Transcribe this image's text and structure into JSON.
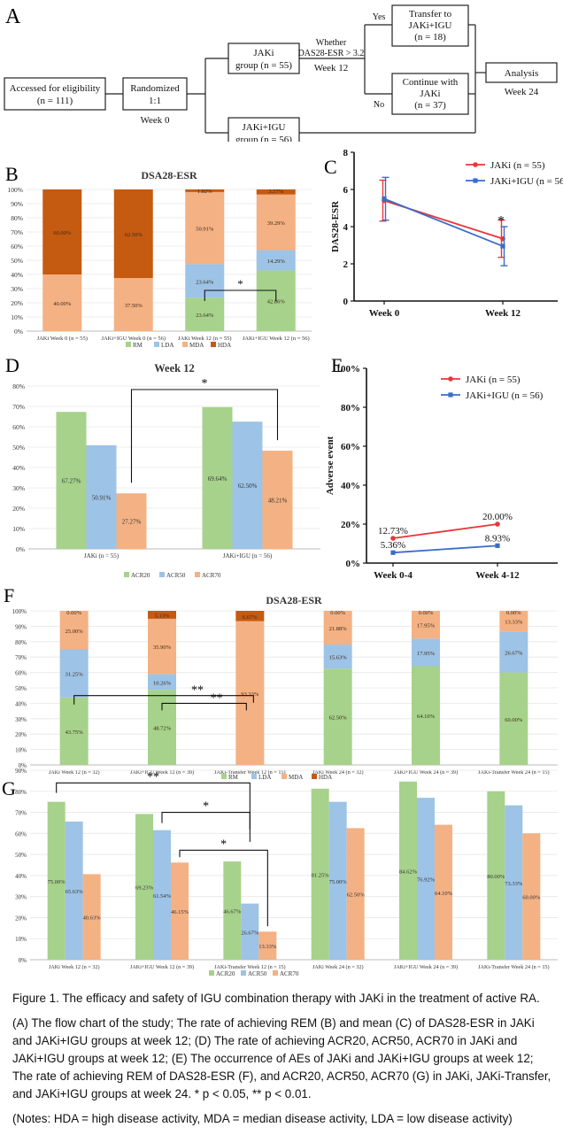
{
  "panelA": {
    "letter": "A",
    "boxes": {
      "accessed": [
        "Accessed for eligibility",
        "(n = 111)"
      ],
      "randomized": [
        "Randomized",
        "1:1"
      ],
      "week0": "Week 0",
      "jaki": [
        "JAKi",
        "group (n = 55)"
      ],
      "jakiigu": [
        "JAKi+IGU",
        "group (n = 56)"
      ],
      "whether": [
        "Whether",
        "DAS28-ESR > 3.2"
      ],
      "week12": "Week 12",
      "yes": "Yes",
      "no": "No",
      "transfer": [
        "Transfer to",
        "JAKi+IGU",
        "(n = 18)"
      ],
      "continue": [
        "Continue with",
        "JAKi",
        "(n = 37)"
      ],
      "analysis": "Analysis",
      "week24": "Week 24"
    }
  },
  "panelB": {
    "letter": "B",
    "chart_data": {
      "type": "bar",
      "stacked": true,
      "title": "DSA28-ESR",
      "categories": [
        "JAKi Week 0 (n = 55)",
        "JAKi+IGU Week 0 (n = 56)",
        "JAKi Week 12 (n = 55)",
        "JAKi+IGU Week 12 (n = 56)"
      ],
      "series": [
        {
          "name": "RM",
          "color": "#a6d28b",
          "values": [
            0.0,
            0.0,
            23.64,
            42.86
          ],
          "labels": [
            "0.00%",
            "0.00%",
            "23.64%",
            "42.86%"
          ]
        },
        {
          "name": "LDA",
          "color": "#9dc3e6",
          "values": [
            0.0,
            0.0,
            23.64,
            14.29
          ],
          "labels": [
            "",
            "",
            "23.64%",
            "14.29%"
          ]
        },
        {
          "name": "MDA",
          "color": "#f4b183",
          "values": [
            40.0,
            37.5,
            50.91,
            39.29
          ],
          "labels": [
            "40.00%",
            "37.50%",
            "50.91%",
            "39.29%"
          ]
        },
        {
          "name": "HDA",
          "color": "#c55a11",
          "values": [
            60.0,
            62.5,
            1.82,
            3.57
          ],
          "labels": [
            "60.00%",
            "62.50%",
            "1.82%",
            "3.57%"
          ]
        }
      ],
      "ylim": [
        0,
        100
      ],
      "yticks": [
        "0%",
        "10%",
        "20%",
        "30%",
        "40%",
        "50%",
        "60%",
        "70%",
        "80%",
        "90%",
        "100%"
      ],
      "annotations": [
        {
          "text": "*",
          "between": [
            2,
            3
          ]
        }
      ],
      "legend": "bottom"
    }
  },
  "panelC": {
    "letter": "C",
    "chart_data": {
      "type": "line",
      "categories": [
        "Week 0",
        "Week 12"
      ],
      "ylabel": "DAS28-ESR",
      "ylim": [
        0,
        8
      ],
      "yticks": [
        "0",
        "2",
        "4",
        "6",
        "8"
      ],
      "series": [
        {
          "name": "JAKi (n = 55)",
          "color": "#e8373a",
          "values": [
            5.4,
            3.35
          ],
          "err": [
            1.1,
            1.0
          ]
        },
        {
          "name": "JAKi+IGU (n = 56)",
          "color": "#3a6dc8",
          "values": [
            5.5,
            2.95
          ],
          "err": [
            1.15,
            1.05
          ]
        }
      ],
      "annotations": [
        {
          "text": "*",
          "at": "Week 12"
        }
      ],
      "legend": "top-right"
    }
  },
  "panelD": {
    "letter": "D",
    "chart_data": {
      "type": "bar",
      "title": "Week 12",
      "categories": [
        "JAKi (n = 55)",
        "JAKi+IGU (n = 56)"
      ],
      "series": [
        {
          "name": "ACR20",
          "color": "#a6d28b",
          "values": [
            67.27,
            69.64
          ],
          "labels": [
            "67.27%",
            "69.64%"
          ]
        },
        {
          "name": "ACR50",
          "color": "#9dc3e6",
          "values": [
            50.91,
            62.5
          ],
          "labels": [
            "50.91%",
            "62.50%"
          ]
        },
        {
          "name": "ACR70",
          "color": "#f4b183",
          "values": [
            27.27,
            48.21
          ],
          "labels": [
            "27.27%",
            "48.21%"
          ]
        }
      ],
      "ylim": [
        0,
        80
      ],
      "yticks": [
        "0%",
        "10%",
        "20%",
        "30%",
        "40%",
        "50%",
        "60%",
        "70%",
        "80%"
      ],
      "annotations": [
        {
          "text": "*",
          "between": [
            "JAKi ACR70",
            "JAKi+IGU ACR70"
          ]
        }
      ],
      "legend": "bottom"
    }
  },
  "panelE": {
    "letter": "E",
    "chart_data": {
      "type": "line",
      "categories": [
        "Week 0-4",
        "Week 4-12"
      ],
      "ylabel": "Adverse event",
      "ylim": [
        0,
        100
      ],
      "yticks": [
        "0%",
        "20%",
        "40%",
        "60%",
        "80%",
        "100%"
      ],
      "series": [
        {
          "name": "JAKi (n = 55)",
          "color": "#e8373a",
          "values": [
            12.73,
            20.0
          ],
          "labels": [
            "12.73%",
            "20.00%"
          ]
        },
        {
          "name": "JAKi+IGU (n = 56)",
          "color": "#3a6dc8",
          "values": [
            5.36,
            8.93
          ],
          "labels": [
            "5.36%",
            "8.93%"
          ]
        }
      ],
      "legend": "top-right"
    }
  },
  "panelF": {
    "letter": "F",
    "chart_data": {
      "type": "bar",
      "stacked": true,
      "title": "DSA28-ESR",
      "categories": [
        "JAKi Week 12 (n = 32)",
        "JAKi+IGU Week 12 (n = 39)",
        "JAKi-Transfer Week 12 (n = 15)",
        "JAKi Week 24 (n = 32)",
        "JAKi+IGU Week 24 (n = 39)",
        "JAKi-Transfer Week 24 (n = 15)"
      ],
      "series": [
        {
          "name": "RM",
          "color": "#a6d28b",
          "values": [
            43.75,
            48.72,
            0.0,
            62.5,
            64.1,
            60.0
          ],
          "labels": [
            "43.75%",
            "48.72%",
            "0.00%",
            "62.50%",
            "64.10%",
            "60.00%"
          ]
        },
        {
          "name": "LDA",
          "color": "#9dc3e6",
          "values": [
            31.25,
            10.26,
            0.0,
            15.63,
            17.95,
            26.67
          ],
          "labels": [
            "31.25%",
            "10.26%",
            "",
            "15.63%",
            "17.95%",
            "26.67%"
          ]
        },
        {
          "name": "MDA",
          "color": "#f4b183",
          "values": [
            25.0,
            35.9,
            93.33,
            21.88,
            17.95,
            13.33
          ],
          "labels": [
            "25.00%",
            "35.90%",
            "93.33%",
            "21.88%",
            "17.95%",
            "13.33%"
          ]
        },
        {
          "name": "HDA",
          "color": "#c55a11",
          "values": [
            0.0,
            5.13,
            6.67,
            0.0,
            0.0,
            0.0
          ],
          "labels": [
            "0.00%",
            "5.13%",
            "6.67%",
            "0.00%",
            "0.00%",
            "0.00%"
          ]
        }
      ],
      "ylim": [
        0,
        100
      ],
      "yticks": [
        "0%",
        "10%",
        "20%",
        "30%",
        "40%",
        "50%",
        "60%",
        "70%",
        "80%",
        "90%",
        "100%"
      ],
      "annotations": [
        {
          "text": "**",
          "between": [
            0,
            2
          ]
        },
        {
          "text": "**",
          "between": [
            1,
            2
          ]
        }
      ],
      "legend": "bottom"
    }
  },
  "panelG": {
    "letter": "G",
    "chart_data": {
      "type": "bar",
      "categories": [
        "JAKi Week 12 (n = 32)",
        "JAKi+IGU Week 12 (n = 39)",
        "JAKi-Transfer Week 12 (n = 15)",
        "JAKi Week 24 (n = 32)",
        "JAKi+IGU Week 24 (n = 39)",
        "JAKi-Transfer Week 24 (n = 15)"
      ],
      "series": [
        {
          "name": "ACR20",
          "color": "#a6d28b",
          "values": [
            75.0,
            69.23,
            46.67,
            81.25,
            84.62,
            80.0
          ],
          "labels": [
            "75.00%",
            "69.23%",
            "46.67%",
            "81.25%",
            "84.62%",
            "80.00%"
          ]
        },
        {
          "name": "ACR50",
          "color": "#9dc3e6",
          "values": [
            65.63,
            61.54,
            26.67,
            75.0,
            76.92,
            73.33
          ],
          "labels": [
            "65.63%",
            "61.54%",
            "26.67%",
            "75.00%",
            "76.92%",
            "73.33%"
          ]
        },
        {
          "name": "ACR70",
          "color": "#f4b183",
          "values": [
            40.63,
            46.15,
            13.33,
            62.5,
            64.1,
            60.0
          ],
          "labels": [
            "40.63%",
            "46.15%",
            "13.33%",
            "62.50%",
            "64.10%",
            "60.00%"
          ]
        }
      ],
      "ylim": [
        0,
        90
      ],
      "yticks": [
        "0%",
        "10%",
        "20%",
        "30%",
        "40%",
        "50%",
        "60%",
        "70%",
        "80%",
        "90%"
      ],
      "annotations": [
        {
          "text": "**",
          "between": [
            0,
            2
          ]
        },
        {
          "text": "*",
          "between": [
            1,
            2
          ]
        },
        {
          "text": "*",
          "between": [
            1,
            2
          ]
        }
      ],
      "legend": "bottom"
    }
  },
  "caption": {
    "title": "Figure 1. The efficacy and safety of IGU combination therapy with JAKi in the treatment of active RA.",
    "body": "(A) The flow chart of the study; The rate of achieving REM (B) and mean (C) of DAS28-ESR in JAKi and JAKi+IGU groups at week 12; (D) The rate of achieving ACR20, ACR50, ACR70 in JAKi and JAKi+IGU groups at week 12; (E) The occurrence of AEs of JAKi and JAKi+IGU groups at week 12; The rate of achieving REM of DAS28-ESR (F), and ACR20, ACR50, ACR70 (G) in JAKi, JAKi-Transfer, and JAKi+IGU groups at week 24. * p < 0.05, ** p < 0.01.",
    "notes": "(Notes: HDA = high disease activity, MDA = median disease activity, LDA = low disease activity)"
  }
}
